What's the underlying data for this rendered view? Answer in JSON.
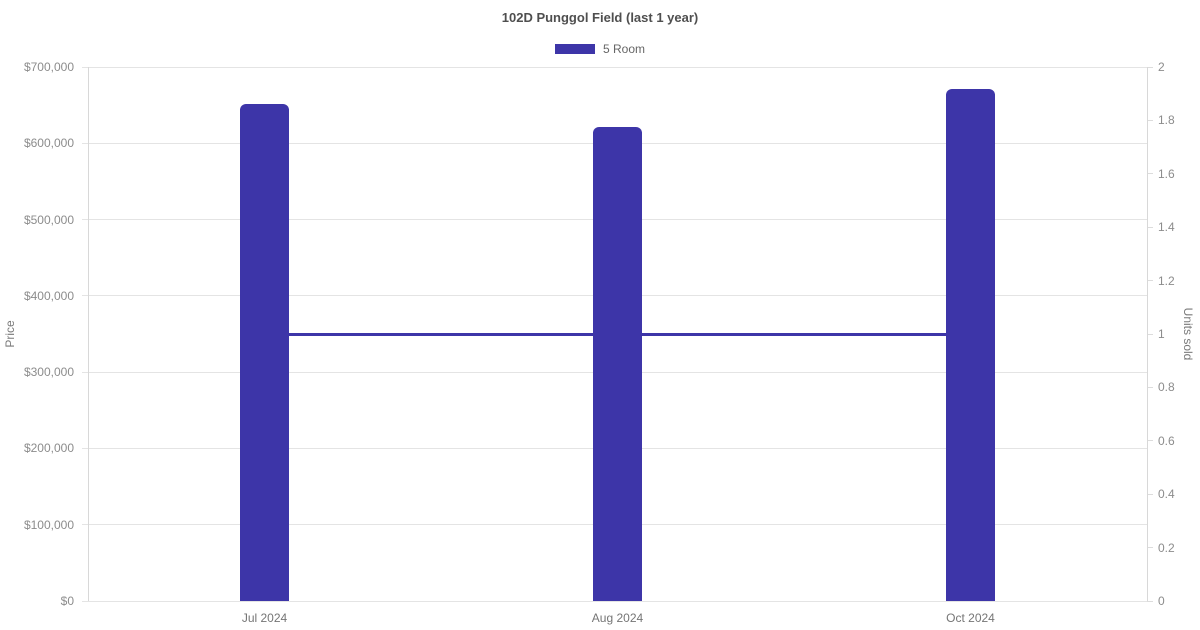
{
  "header": {
    "title": "102D Punggol Field (last 1 year)"
  },
  "legend": {
    "items": [
      {
        "label": "5 Room",
        "color": "#3d35a8"
      }
    ]
  },
  "colors": {
    "accent": "#3d35a8",
    "grid_line": "#e4e4e4",
    "axis_line": "#d8d8d8",
    "tick_text": "#8c8c8c",
    "axis_title_text": "#7a7a7a",
    "title_text": "#4f4f4f"
  },
  "chart_data": {
    "type": "bar",
    "title": "102D Punggol Field (last 1 year)",
    "categories": [
      "Jul 2024",
      "Aug 2024",
      "Oct 2024"
    ],
    "series": [
      {
        "name": "5 Room",
        "type": "bar",
        "axis": "left",
        "color": "#3d35a8",
        "values": [
          651000,
          621000,
          671000
        ]
      },
      {
        "name": "Units sold",
        "type": "line",
        "axis": "right",
        "color": "#3d35a8",
        "values": [
          1,
          1,
          1
        ]
      }
    ],
    "left_axis": {
      "label": "Price",
      "min": 0,
      "max": 700000,
      "tick_labels": [
        "$0",
        "$100,000",
        "$200,000",
        "$300,000",
        "$400,000",
        "$500,000",
        "$600,000",
        "$700,000"
      ]
    },
    "right_axis": {
      "label": "Units sold",
      "min": 0,
      "max": 2,
      "tick_labels": [
        "0",
        "0.2",
        "0.4",
        "0.6",
        "0.8",
        "1",
        "1.2",
        "1.4",
        "1.6",
        "1.8",
        "2"
      ]
    },
    "legend_position": "top",
    "grid": true
  }
}
